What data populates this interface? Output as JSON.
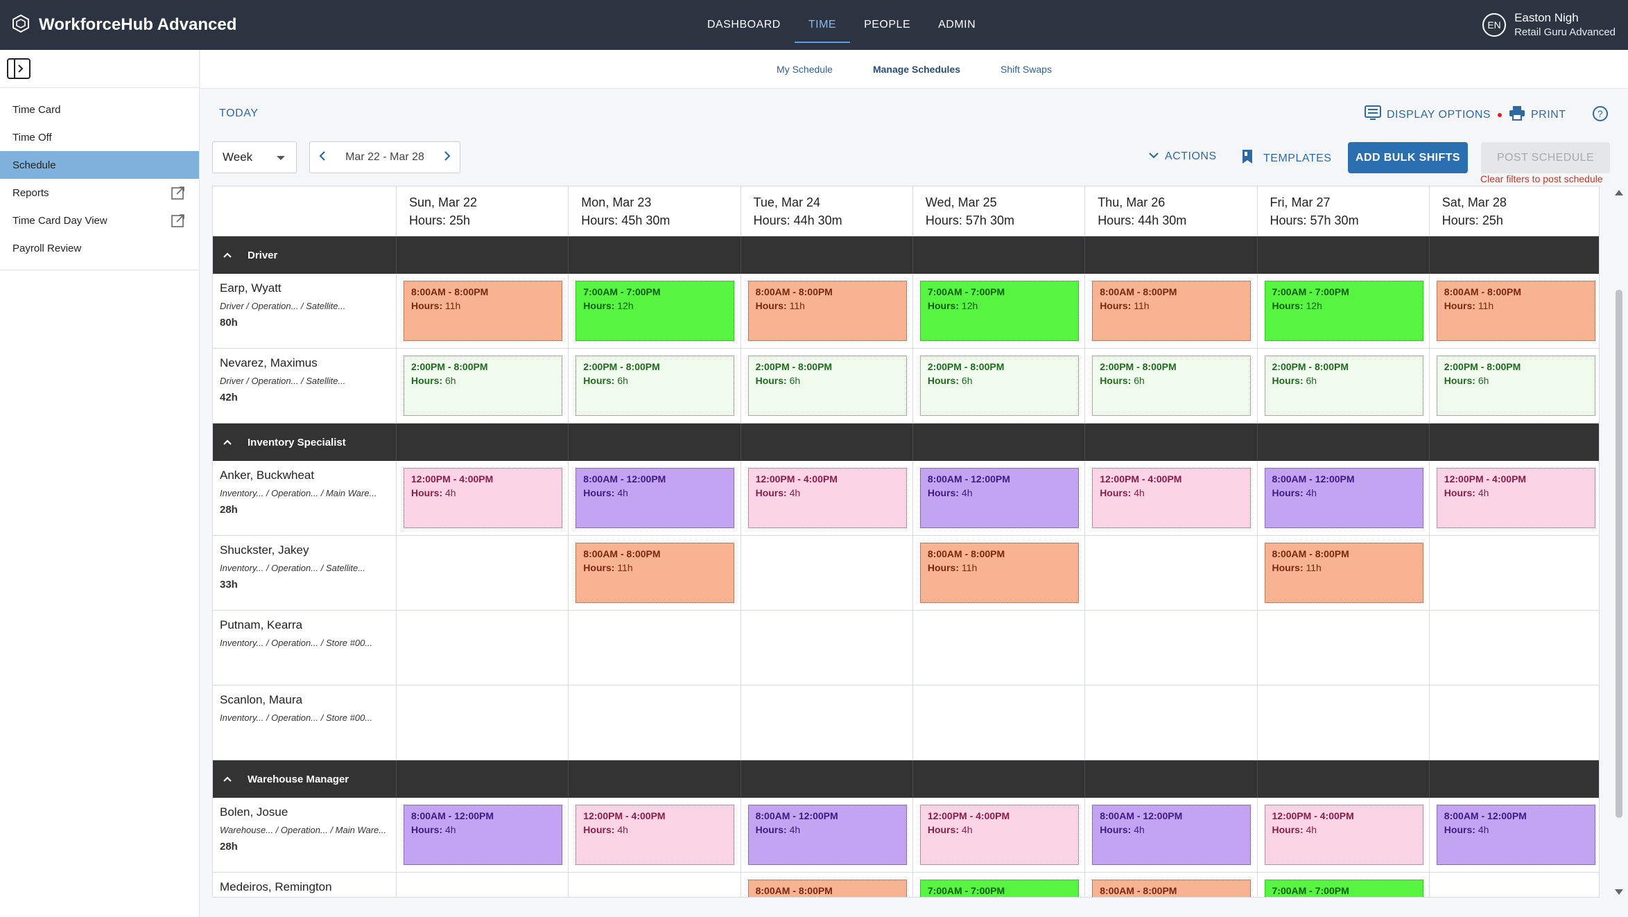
{
  "app": {
    "title": "WorkforceHub Advanced"
  },
  "nav": {
    "items": [
      "DASHBOARD",
      "TIME",
      "PEOPLE",
      "ADMIN"
    ],
    "active": "TIME"
  },
  "user": {
    "initials": "EN",
    "name": "Easton Nigh",
    "role": "Retail Guru Advanced"
  },
  "sidebar": {
    "items": [
      "Time Card",
      "Time Off",
      "Schedule",
      "Reports",
      "Time Card Day View",
      "Payroll Review"
    ],
    "active": "Schedule"
  },
  "subnav": {
    "items": [
      "My Schedule",
      "Manage Schedules",
      "Shift Swaps"
    ],
    "active": "Manage Schedules"
  },
  "toolbar": {
    "today": "TODAY",
    "display_options": "DISPLAY OPTIONS",
    "print": "PRINT",
    "actions": "ACTIONS",
    "templates": "TEMPLATES",
    "add_bulk": "ADD BULK SHIFTS",
    "post": "POST SCHEDULE",
    "post_note": "Clear filters to post schedule",
    "view": "Week",
    "range": "Mar 22 - Mar 28"
  },
  "days": [
    {
      "day": "Sun, Mar 22",
      "hours": "Hours: 25h"
    },
    {
      "day": "Mon, Mar 23",
      "hours": "Hours: 45h 30m"
    },
    {
      "day": "Tue, Mar 24",
      "hours": "Hours: 44h 30m"
    },
    {
      "day": "Wed, Mar 25",
      "hours": "Hours: 57h 30m"
    },
    {
      "day": "Thu, Mar 26",
      "hours": "Hours: 44h 30m"
    },
    {
      "day": "Fri, Mar 27",
      "hours": "Hours: 57h 30m"
    },
    {
      "day": "Sat, Mar 28",
      "hours": "Hours: 25h"
    }
  ],
  "groups": [
    {
      "name": "Driver",
      "employees": [
        {
          "name": "Earp, Wyatt",
          "role": "Driver / Operation... / Satellite...",
          "hours": "80h",
          "shifts": [
            {
              "time": "8:00AM - 8:00PM",
              "hours": "11h",
              "color": "orange"
            },
            {
              "time": "7:00AM - 7:00PM",
              "hours": "12h",
              "color": "green"
            },
            {
              "time": "8:00AM - 8:00PM",
              "hours": "11h",
              "color": "orange"
            },
            {
              "time": "7:00AM - 7:00PM",
              "hours": "12h",
              "color": "green"
            },
            {
              "time": "8:00AM - 8:00PM",
              "hours": "11h",
              "color": "orange"
            },
            {
              "time": "7:00AM - 7:00PM",
              "hours": "12h",
              "color": "green"
            },
            {
              "time": "8:00AM - 8:00PM",
              "hours": "11h",
              "color": "orange"
            }
          ]
        },
        {
          "name": "Nevarez, Maximus",
          "role": "Driver / Operation... / Satellite...",
          "hours": "42h",
          "shifts": [
            {
              "time": "2:00PM - 8:00PM",
              "hours": "6h",
              "color": "lgreen"
            },
            {
              "time": "2:00PM - 8:00PM",
              "hours": "6h",
              "color": "lgreen"
            },
            {
              "time": "2:00PM - 8:00PM",
              "hours": "6h",
              "color": "lgreen"
            },
            {
              "time": "2:00PM - 8:00PM",
              "hours": "6h",
              "color": "lgreen"
            },
            {
              "time": "2:00PM - 8:00PM",
              "hours": "6h",
              "color": "lgreen"
            },
            {
              "time": "2:00PM - 8:00PM",
              "hours": "6h",
              "color": "lgreen"
            },
            {
              "time": "2:00PM - 8:00PM",
              "hours": "6h",
              "color": "lgreen"
            }
          ]
        }
      ]
    },
    {
      "name": "Inventory Specialist",
      "employees": [
        {
          "name": "Anker, Buckwheat",
          "role": "Inventory... / Operation... / Main Ware...",
          "hours": "28h",
          "shifts": [
            {
              "time": "12:00PM - 4:00PM",
              "hours": "4h",
              "color": "pink"
            },
            {
              "time": "8:00AM - 12:00PM",
              "hours": "4h",
              "color": "purple"
            },
            {
              "time": "12:00PM - 4:00PM",
              "hours": "4h",
              "color": "pink"
            },
            {
              "time": "8:00AM - 12:00PM",
              "hours": "4h",
              "color": "purple"
            },
            {
              "time": "12:00PM - 4:00PM",
              "hours": "4h",
              "color": "pink"
            },
            {
              "time": "8:00AM - 12:00PM",
              "hours": "4h",
              "color": "purple"
            },
            {
              "time": "12:00PM - 4:00PM",
              "hours": "4h",
              "color": "pink"
            }
          ]
        },
        {
          "name": "Shuckster, Jakey",
          "role": "Inventory... / Operation... / Satellite...",
          "hours": "33h",
          "shifts": [
            null,
            {
              "time": "8:00AM - 8:00PM",
              "hours": "11h",
              "color": "orange"
            },
            null,
            {
              "time": "8:00AM - 8:00PM",
              "hours": "11h",
              "color": "orange"
            },
            null,
            {
              "time": "8:00AM - 8:00PM",
              "hours": "11h",
              "color": "orange"
            },
            null
          ]
        },
        {
          "name": "Putnam, Kearra",
          "role": "Inventory... / Operation... / Store #00...",
          "hours": "",
          "shifts": [
            null,
            null,
            null,
            null,
            null,
            null,
            null
          ]
        },
        {
          "name": "Scanlon, Maura",
          "role": "Inventory... / Operation... / Store #00...",
          "hours": "",
          "shifts": [
            null,
            null,
            null,
            null,
            null,
            null,
            null
          ]
        }
      ]
    },
    {
      "name": "Warehouse Manager",
      "employees": [
        {
          "name": "Bolen, Josue",
          "role": "Warehouse... / Operation... / Main Ware...",
          "hours": "28h",
          "shifts": [
            {
              "time": "8:00AM - 12:00PM",
              "hours": "4h",
              "color": "purple"
            },
            {
              "time": "12:00PM - 4:00PM",
              "hours": "4h",
              "color": "pink"
            },
            {
              "time": "8:00AM - 12:00PM",
              "hours": "4h",
              "color": "purple"
            },
            {
              "time": "12:00PM - 4:00PM",
              "hours": "4h",
              "color": "pink"
            },
            {
              "time": "8:00AM - 12:00PM",
              "hours": "4h",
              "color": "purple"
            },
            {
              "time": "12:00PM - 4:00PM",
              "hours": "4h",
              "color": "pink"
            },
            {
              "time": "8:00AM - 12:00PM",
              "hours": "4h",
              "color": "purple"
            }
          ]
        },
        {
          "name": "Medeiros, Remington",
          "role": "",
          "hours": "",
          "shifts": [
            null,
            null,
            {
              "time": "8:00AM - 8:00PM",
              "hours": "",
              "color": "orange"
            },
            {
              "time": "7:00AM - 7:00PM",
              "hours": "",
              "color": "green"
            },
            {
              "time": "8:00AM - 8:00PM",
              "hours": "",
              "color": "orange"
            },
            {
              "time": "7:00AM - 7:00PM",
              "hours": "",
              "color": "green"
            },
            null
          ]
        }
      ]
    }
  ],
  "shift_hours_label": "Hours:",
  "icons": {
    "logo": "hexagon-logo-icon",
    "sidebar_toggle": "sidebar-toggle-icon",
    "external": "external-link-icon",
    "display": "display-options-icon",
    "print": "printer-icon",
    "help": "help-icon",
    "chevron_down": "chevron-down-icon",
    "template": "bookmark-icon",
    "prev": "chevron-left-icon",
    "next": "chevron-right-icon",
    "collapse": "chevron-up-icon"
  },
  "colors": {
    "topbar": "#2b3440",
    "accent": "#2c6fb0",
    "sidebar_active": "#7fb1dd",
    "group_bar": "#333333"
  }
}
